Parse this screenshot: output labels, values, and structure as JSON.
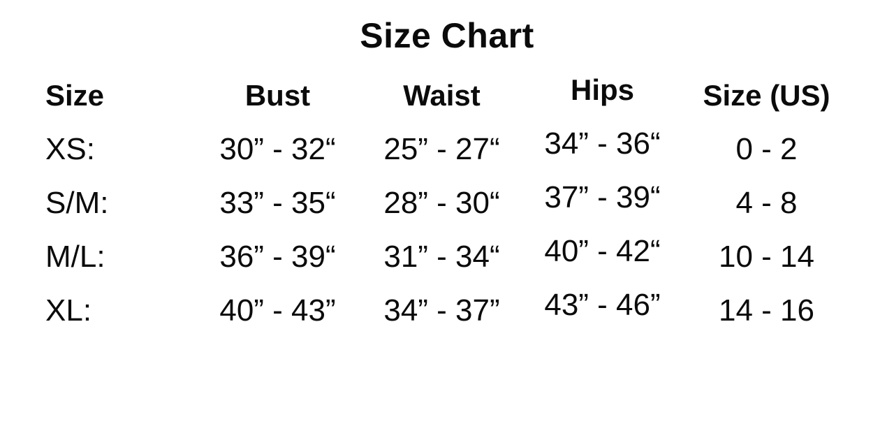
{
  "page": {
    "background_color": "#ffffff",
    "text_color": "#0b0b0b"
  },
  "chart_data": {
    "type": "table",
    "title": "Size Chart",
    "columns": [
      "Size",
      "Bust",
      "Waist",
      "Hips",
      "Size (US)"
    ],
    "rows": [
      [
        "XS:",
        "30” - 32“",
        "25” - 27“",
        "34” - 36“",
        "0 - 2"
      ],
      [
        "S/M:",
        "33” - 35“",
        "28” - 30“",
        "37” - 39“",
        "4 - 8"
      ],
      [
        "M/L:",
        "36” - 39“",
        "31” - 34“",
        "40” - 42“",
        "10 - 14"
      ],
      [
        "XL:",
        "40” - 43”",
        "34” - 37”",
        "43” - 46”",
        "14 - 16"
      ]
    ]
  }
}
